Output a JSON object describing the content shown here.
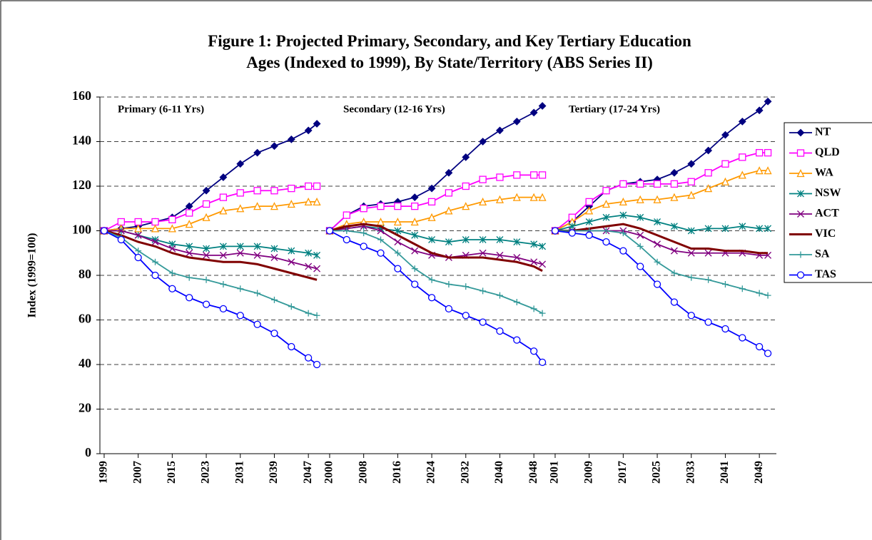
{
  "chart_data": [
    {
      "type": "line",
      "title": "Figure 1: Projected Primary, Secondary, and Key Tertiary Education Ages (Indexed to 1999), By State/Territory (ABS Series II)",
      "y_label": "Index (1999=100)",
      "subtitle": "Primary (6-11 Yrs)",
      "grid": true,
      "ylim": [
        0,
        160
      ],
      "yticks": [
        0,
        20,
        40,
        60,
        80,
        100,
        120,
        140,
        160
      ],
      "xlim": [
        1998,
        2051
      ],
      "xticks": [
        1999,
        2007,
        2015,
        2023,
        2031,
        2039,
        2047
      ],
      "x": [
        1999,
        2003,
        2007,
        2011,
        2015,
        2019,
        2023,
        2027,
        2031,
        2035,
        2039,
        2043,
        2047,
        2049
      ],
      "series": [
        {
          "name": "NT",
          "color": "#000080",
          "marker": "diamond",
          "values": [
            100,
            101,
            102,
            104,
            106,
            111,
            118,
            124,
            130,
            135,
            138,
            141,
            145,
            148
          ]
        },
        {
          "name": "QLD",
          "color": "#ff00ff",
          "marker": "square",
          "values": [
            100,
            104,
            104,
            104,
            105,
            108,
            112,
            115,
            117,
            118,
            118,
            119,
            120,
            120
          ]
        },
        {
          "name": "WA",
          "color": "#ff9900",
          "marker": "triangle",
          "values": [
            100,
            101,
            101,
            101,
            101,
            103,
            106,
            109,
            110,
            111,
            111,
            112,
            113,
            113
          ]
        },
        {
          "name": "NSW",
          "color": "#008080",
          "marker": "asterisk",
          "values": [
            100,
            100,
            98,
            96,
            94,
            93,
            92,
            93,
            93,
            93,
            92,
            91,
            90,
            89
          ]
        },
        {
          "name": "ACT",
          "color": "#800080",
          "marker": "cross",
          "values": [
            100,
            100,
            98,
            95,
            92,
            90,
            89,
            89,
            90,
            89,
            88,
            86,
            84,
            83
          ]
        },
        {
          "name": "VIC",
          "color": "#800000",
          "marker": "none",
          "values": [
            100,
            98,
            95,
            93,
            90,
            88,
            87,
            86,
            86,
            85,
            83,
            81,
            79,
            78
          ]
        },
        {
          "name": "SA",
          "color": "#339999",
          "marker": "plus",
          "values": [
            100,
            97,
            91,
            86,
            81,
            79,
            78,
            76,
            74,
            72,
            69,
            66,
            63,
            62
          ]
        },
        {
          "name": "TAS",
          "color": "#0000ff",
          "marker": "circle",
          "values": [
            100,
            96,
            88,
            80,
            74,
            70,
            67,
            65,
            62,
            58,
            54,
            48,
            43,
            40
          ]
        }
      ]
    },
    {
      "type": "line",
      "subtitle": "Secondary (12-16 Yrs)",
      "ylim": [
        0,
        160
      ],
      "xlim": [
        1999,
        2052
      ],
      "xticks": [
        2000,
        2008,
        2016,
        2024,
        2032,
        2040,
        2048
      ],
      "x": [
        2000,
        2004,
        2008,
        2012,
        2016,
        2020,
        2024,
        2028,
        2032,
        2036,
        2040,
        2044,
        2048,
        2050
      ],
      "series": [
        {
          "name": "NT",
          "color": "#000080",
          "marker": "diamond",
          "values": [
            100,
            107,
            111,
            112,
            113,
            115,
            119,
            126,
            133,
            140,
            145,
            149,
            153,
            156
          ]
        },
        {
          "name": "QLD",
          "color": "#ff00ff",
          "marker": "square",
          "values": [
            100,
            107,
            110,
            111,
            111,
            111,
            113,
            117,
            120,
            123,
            124,
            125,
            125,
            125
          ]
        },
        {
          "name": "WA",
          "color": "#ff9900",
          "marker": "triangle",
          "values": [
            100,
            103,
            104,
            104,
            104,
            104,
            106,
            109,
            111,
            113,
            114,
            115,
            115,
            115
          ]
        },
        {
          "name": "NSW",
          "color": "#008080",
          "marker": "asterisk",
          "values": [
            100,
            101,
            102,
            101,
            100,
            98,
            96,
            95,
            96,
            96,
            96,
            95,
            94,
            93
          ]
        },
        {
          "name": "ACT",
          "color": "#800080",
          "marker": "cross",
          "values": [
            100,
            101,
            102,
            100,
            95,
            91,
            89,
            88,
            89,
            90,
            89,
            88,
            86,
            85
          ]
        },
        {
          "name": "VIC",
          "color": "#800000",
          "marker": "none",
          "values": [
            100,
            102,
            103,
            102,
            98,
            94,
            90,
            88,
            88,
            88,
            87,
            86,
            84,
            82
          ]
        },
        {
          "name": "SA",
          "color": "#339999",
          "marker": "plus",
          "values": [
            100,
            100,
            99,
            96,
            90,
            83,
            78,
            76,
            75,
            73,
            71,
            68,
            65,
            63
          ]
        },
        {
          "name": "TAS",
          "color": "#0000ff",
          "marker": "circle",
          "values": [
            100,
            96,
            93,
            90,
            83,
            76,
            70,
            65,
            62,
            59,
            55,
            51,
            46,
            41
          ]
        }
      ]
    },
    {
      "type": "line",
      "subtitle": "Tertiary (17-24 Yrs)",
      "ylim": [
        0,
        160
      ],
      "xlim": [
        2000,
        2053
      ],
      "xticks": [
        2001,
        2009,
        2017,
        2025,
        2033,
        2041,
        2049
      ],
      "x": [
        2001,
        2005,
        2009,
        2013,
        2017,
        2021,
        2025,
        2029,
        2033,
        2037,
        2041,
        2045,
        2049,
        2051
      ],
      "series": [
        {
          "name": "NT",
          "color": "#000080",
          "marker": "diamond",
          "values": [
            100,
            104,
            111,
            118,
            121,
            122,
            123,
            126,
            130,
            136,
            143,
            149,
            154,
            158
          ]
        },
        {
          "name": "QLD",
          "color": "#ff00ff",
          "marker": "square",
          "values": [
            100,
            106,
            113,
            118,
            121,
            121,
            121,
            121,
            122,
            126,
            130,
            133,
            135,
            135
          ]
        },
        {
          "name": "WA",
          "color": "#ff9900",
          "marker": "triangle",
          "values": [
            100,
            104,
            109,
            112,
            113,
            114,
            114,
            115,
            116,
            119,
            122,
            125,
            127,
            127
          ]
        },
        {
          "name": "NSW",
          "color": "#008080",
          "marker": "asterisk",
          "values": [
            100,
            102,
            104,
            106,
            107,
            106,
            104,
            102,
            100,
            101,
            101,
            102,
            101,
            101
          ]
        },
        {
          "name": "ACT",
          "color": "#800080",
          "marker": "cross",
          "values": [
            100,
            100,
            100,
            100,
            100,
            98,
            94,
            91,
            90,
            90,
            90,
            90,
            89,
            89
          ]
        },
        {
          "name": "VIC",
          "color": "#800000",
          "marker": "none",
          "values": [
            100,
            100,
            101,
            102,
            103,
            101,
            98,
            95,
            92,
            92,
            91,
            91,
            90,
            90
          ]
        },
        {
          "name": "SA",
          "color": "#339999",
          "marker": "plus",
          "values": [
            100,
            100,
            100,
            100,
            99,
            93,
            86,
            81,
            79,
            78,
            76,
            74,
            72,
            71
          ]
        },
        {
          "name": "TAS",
          "color": "#0000ff",
          "marker": "circle",
          "values": [
            100,
            99,
            98,
            95,
            91,
            84,
            76,
            68,
            62,
            59,
            56,
            52,
            48,
            45
          ]
        }
      ]
    }
  ]
}
